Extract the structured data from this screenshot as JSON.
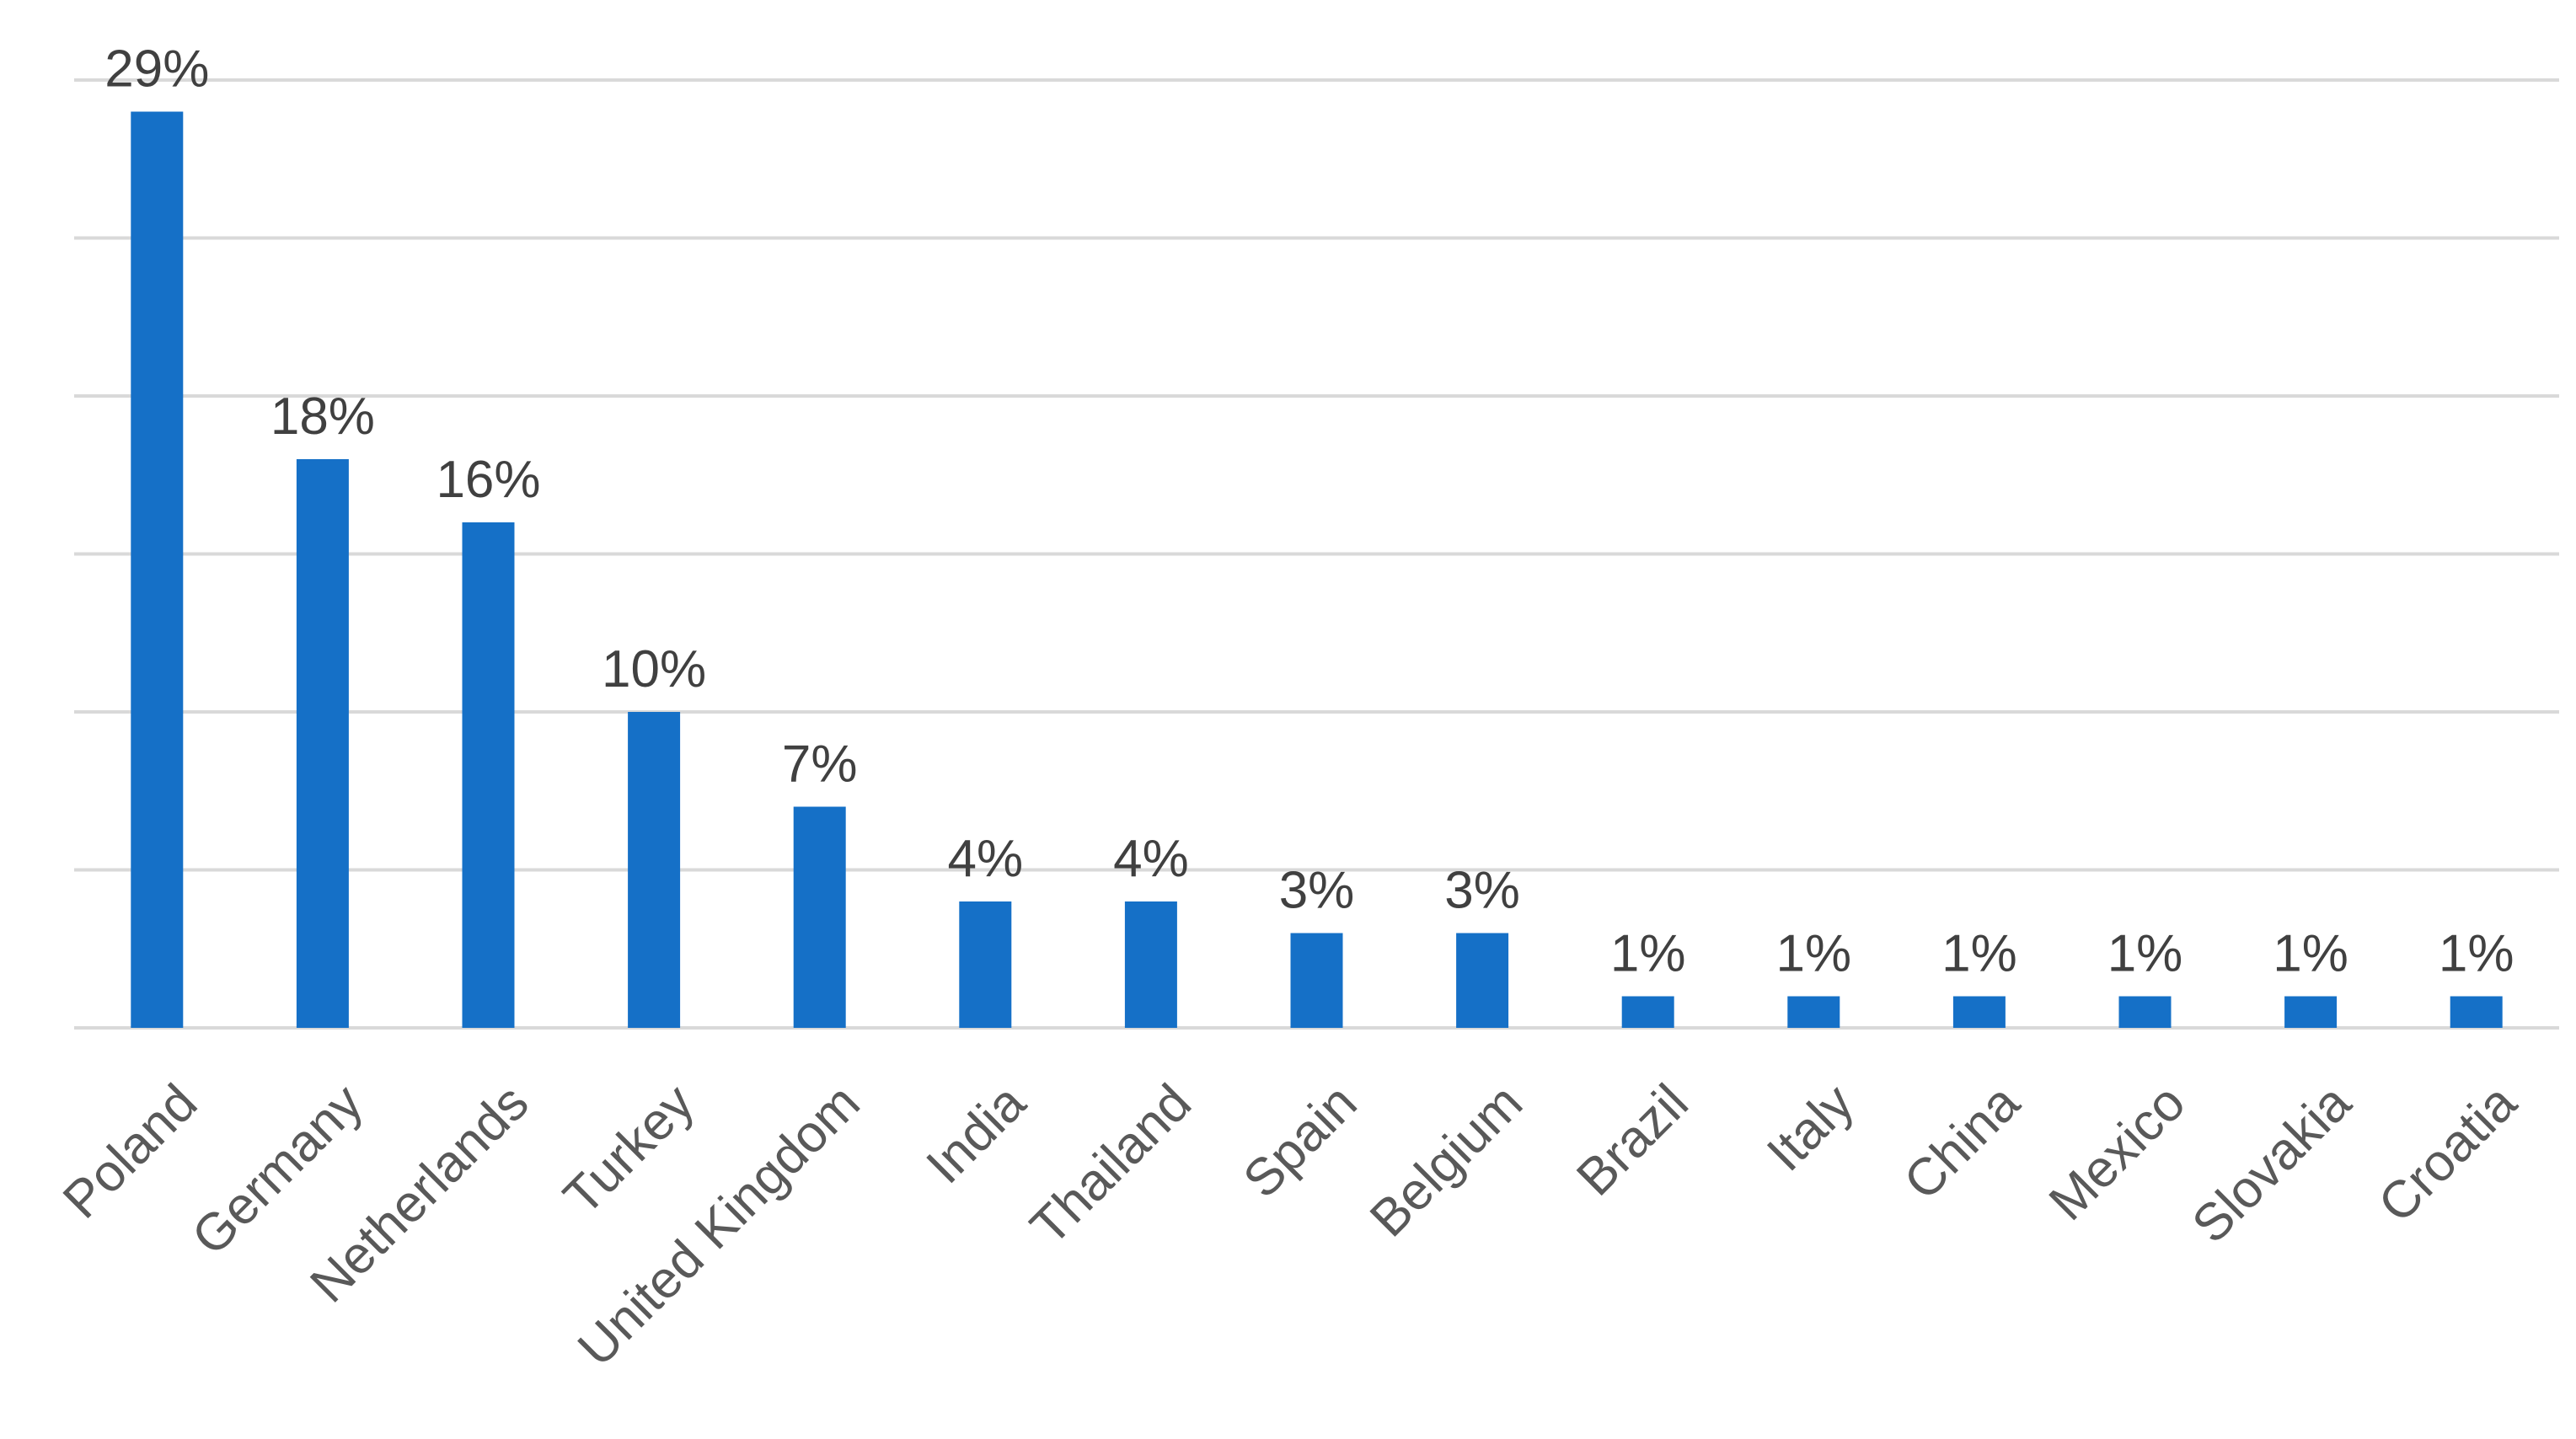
{
  "chart_data": {
    "type": "bar",
    "title": "",
    "xlabel": "",
    "ylabel": "",
    "categories": [
      "Poland",
      "Germany",
      "Netherlands",
      "Turkey",
      "United Kingdom",
      "India",
      "Thailand",
      "Spain",
      "Belgium",
      "Brazil",
      "Italy",
      "China",
      "Mexico",
      "Slovakia",
      "Croatia"
    ],
    "values": [
      29,
      18,
      16,
      10,
      7,
      4,
      4,
      3,
      3,
      1,
      1,
      1,
      1,
      1,
      1
    ],
    "data_labels": [
      "29%",
      "18%",
      "16%",
      "10%",
      "7%",
      "4%",
      "4%",
      "3%",
      "3%",
      "1%",
      "1%",
      "1%",
      "1%",
      "1%",
      "1%"
    ],
    "ylim": [
      0,
      30
    ],
    "y_gridlines": [
      0,
      5,
      10,
      15,
      20,
      25,
      30
    ],
    "grid": true,
    "legend": "none",
    "colors": {
      "bar": "#1570c7",
      "grid": "#d9d9d9",
      "label": "#404040",
      "tick": "#595959"
    }
  }
}
